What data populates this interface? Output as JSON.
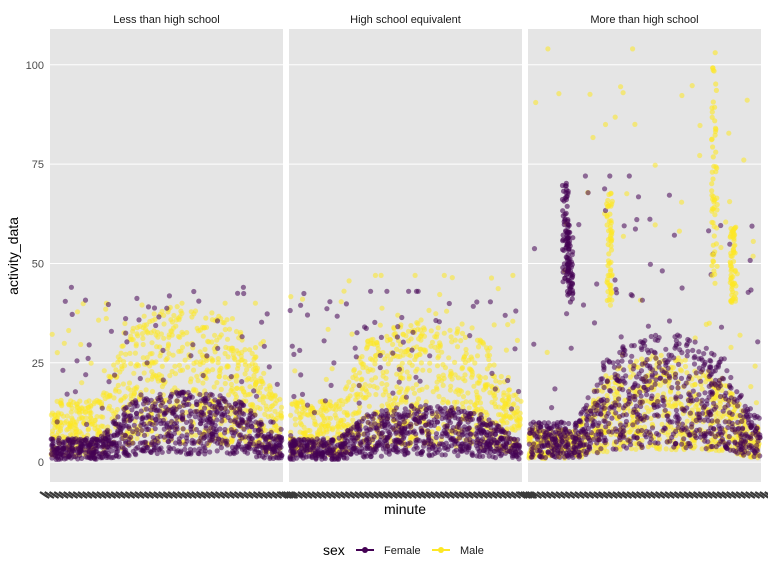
{
  "chart_data": {
    "type": "scatter",
    "xlabel": "minute",
    "ylabel": "activity_data",
    "ylim": [
      -5,
      109
    ],
    "y_ticks": [
      0,
      25,
      50,
      75,
      100
    ],
    "x_tick_labels": "dense unreadable labels (minute 1–1440)",
    "facets": [
      "Less than high school",
      "High school equivalent",
      "More than high school"
    ],
    "legend": {
      "title": "sex",
      "position": "bottom",
      "entries": [
        {
          "name": "Female",
          "color": "#440154"
        },
        {
          "name": "Male",
          "color": "#FDE725"
        }
      ]
    },
    "approx_daily_profiles": [
      {
        "facet": "Less than high school",
        "Female": {
          "night": 3,
          "day": 10,
          "peak": 44
        },
        "Male": {
          "night": 8,
          "day": 22,
          "peak": 40
        }
      },
      {
        "facet": "High school equivalent",
        "Female": {
          "night": 3,
          "day": 8,
          "peak": 43
        },
        "Male": {
          "night": 8,
          "day": 20,
          "peak": 47
        }
      },
      {
        "facet": "More than high school",
        "Female": {
          "night": 5,
          "day": 18,
          "peak": 72
        },
        "Male": {
          "night": 4,
          "day": 15,
          "peak": 104
        }
      }
    ]
  }
}
